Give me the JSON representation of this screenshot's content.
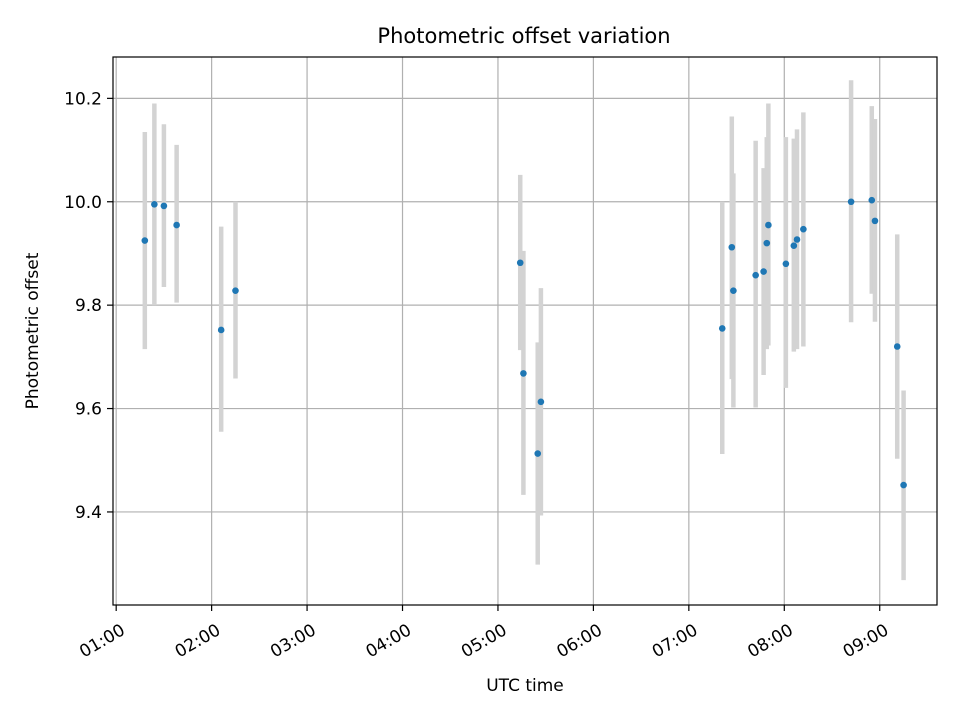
{
  "chart_data": {
    "type": "scatter",
    "title": "Photometric offset variation",
    "xlabel": "UTC time",
    "ylabel": "Photometric offset",
    "xlim": [
      "00:58",
      "09:36"
    ],
    "ylim": [
      9.22,
      10.28
    ],
    "xticks": [
      "01:00",
      "02:00",
      "03:00",
      "04:00",
      "05:00",
      "06:00",
      "07:00",
      "08:00",
      "09:00"
    ],
    "yticks": [
      9.4,
      9.6,
      9.8,
      10.0,
      10.2
    ],
    "ytick_labels": [
      "9.4",
      "9.6",
      "9.8",
      "10.0",
      "10.2"
    ],
    "grid": true,
    "legend": "none",
    "colors": {
      "points": "#1f77b4",
      "errorbars": "#d3d3d3"
    },
    "points": [
      {
        "t": "01:18",
        "y": 9.925,
        "lo": 9.715,
        "hi": 10.135
      },
      {
        "t": "01:24",
        "y": 9.995,
        "lo": 9.8,
        "hi": 10.19
      },
      {
        "t": "01:30",
        "y": 9.992,
        "lo": 9.835,
        "hi": 10.15
      },
      {
        "t": "01:38",
        "y": 9.955,
        "lo": 9.805,
        "hi": 10.11
      },
      {
        "t": "02:06",
        "y": 9.752,
        "lo": 9.555,
        "hi": 9.952
      },
      {
        "t": "02:15",
        "y": 9.828,
        "lo": 9.658,
        "hi": 10.0
      },
      {
        "t": "05:14",
        "y": 9.882,
        "lo": 9.713,
        "hi": 10.052
      },
      {
        "t": "05:16",
        "y": 9.668,
        "lo": 9.433,
        "hi": 9.905
      },
      {
        "t": "05:25",
        "y": 9.513,
        "lo": 9.298,
        "hi": 9.728
      },
      {
        "t": "05:27",
        "y": 9.613,
        "lo": 9.393,
        "hi": 9.833
      },
      {
        "t": "07:21",
        "y": 9.755,
        "lo": 9.512,
        "hi": 10.0
      },
      {
        "t": "07:27",
        "y": 9.912,
        "lo": 9.657,
        "hi": 10.165
      },
      {
        "t": "07:28",
        "y": 9.828,
        "lo": 9.602,
        "hi": 10.055
      },
      {
        "t": "07:42",
        "y": 9.858,
        "lo": 9.602,
        "hi": 10.118
      },
      {
        "t": "07:47",
        "y": 9.865,
        "lo": 9.665,
        "hi": 10.065
      },
      {
        "t": "07:49",
        "y": 9.92,
        "lo": 9.715,
        "hi": 10.125
      },
      {
        "t": "07:50",
        "y": 9.955,
        "lo": 9.722,
        "hi": 10.19
      },
      {
        "t": "08:01",
        "y": 9.88,
        "lo": 9.64,
        "hi": 10.125
      },
      {
        "t": "08:06",
        "y": 9.915,
        "lo": 9.71,
        "hi": 10.122
      },
      {
        "t": "08:08",
        "y": 9.927,
        "lo": 9.715,
        "hi": 10.14
      },
      {
        "t": "08:12",
        "y": 9.947,
        "lo": 9.72,
        "hi": 10.173
      },
      {
        "t": "08:42",
        "y": 10.0,
        "lo": 9.767,
        "hi": 10.235
      },
      {
        "t": "08:55",
        "y": 10.003,
        "lo": 9.822,
        "hi": 10.185
      },
      {
        "t": "08:57",
        "y": 9.963,
        "lo": 9.768,
        "hi": 10.16
      },
      {
        "t": "09:11",
        "y": 9.72,
        "lo": 9.503,
        "hi": 9.937
      },
      {
        "t": "09:15",
        "y": 9.452,
        "lo": 9.268,
        "hi": 9.635
      }
    ]
  }
}
